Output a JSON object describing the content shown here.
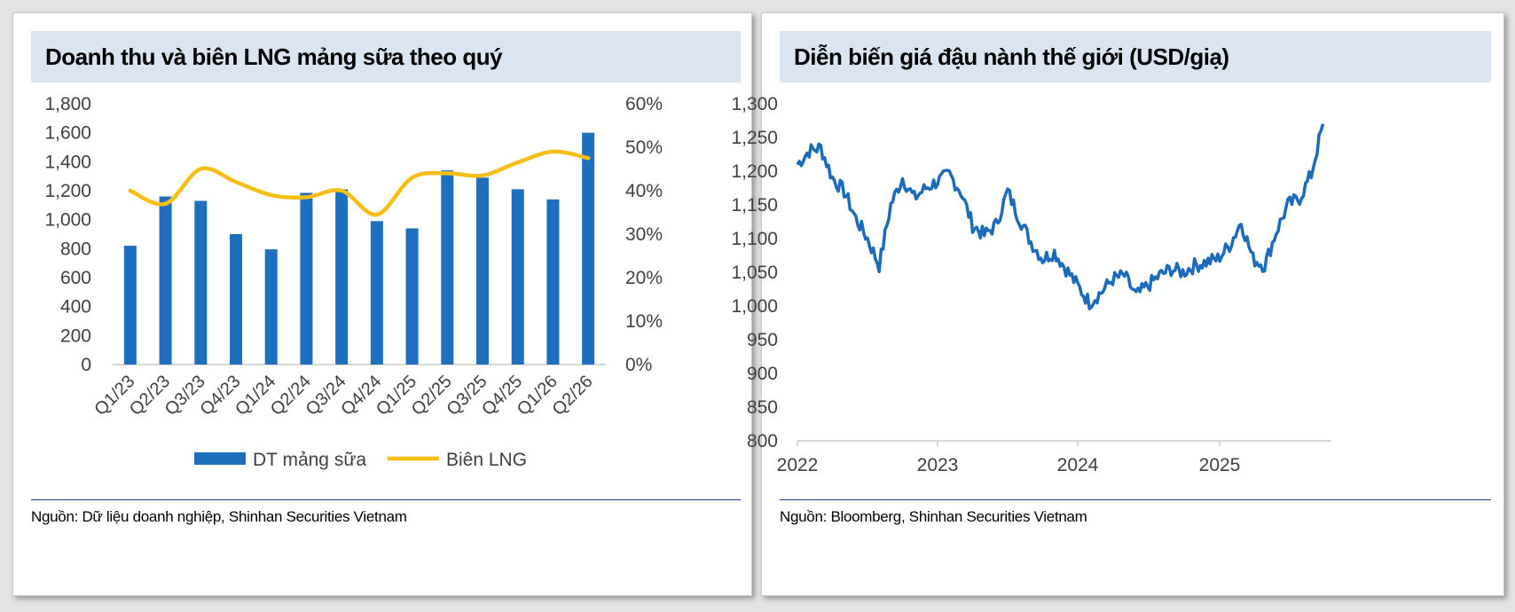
{
  "left_panel": {
    "title": "Doanh thu và biên LNG mảng sữa theo quý",
    "source": "Nguồn: Dữ liệu doanh nghiệp, Shinhan Securities Vietnam"
  },
  "right_panel": {
    "title": "Diễn biến giá đậu nành thế giới (USD/giạ)",
    "source": "Nguồn: Bloomberg, Shinhan Securities Vietnam"
  },
  "colors": {
    "bar": "#1f6fbf",
    "margin_line": "#f7be16",
    "price_line": "#1c6bba",
    "title_bg": "#dbe5f1",
    "rule": "#1f3a93"
  },
  "chart_data": [
    {
      "type": "bar",
      "categories": [
        "Q1/23",
        "Q2/23",
        "Q3/23",
        "Q4/23",
        "Q1/24",
        "Q2/24",
        "Q3/24",
        "Q4/24",
        "Q1/25",
        "Q2/25",
        "Q3/25",
        "Q4/25",
        "Q1/26",
        "Q2/26"
      ],
      "series": [
        {
          "name": "DT mảng sữa",
          "type": "bar",
          "axis": "left",
          "values": [
            820,
            1160,
            1130,
            900,
            795,
            1185,
            1210,
            990,
            940,
            1340,
            1290,
            1210,
            1140,
            1600
          ]
        },
        {
          "name": "Biên LNG",
          "type": "line",
          "axis": "right",
          "values": [
            0.4,
            0.37,
            0.45,
            0.42,
            0.39,
            0.385,
            0.4,
            0.345,
            0.43,
            0.44,
            0.435,
            0.465,
            0.49,
            0.475
          ]
        }
      ],
      "title": "Doanh thu và biên LNG mảng sữa theo quý",
      "y_left": {
        "min": 0,
        "max": 1800,
        "ticks": [
          "0",
          "200",
          "400",
          "600",
          "800",
          "1,000",
          "1,200",
          "1,400",
          "1,600",
          "1,800"
        ]
      },
      "y_right": {
        "min": 0,
        "max": 0.6,
        "ticks": [
          "0%",
          "10%",
          "20%",
          "30%",
          "40%",
          "50%",
          "60%"
        ]
      },
      "grid": false,
      "legend": "bottom"
    },
    {
      "type": "line",
      "title": "Diễn biến giá đậu nành thế giới (USD/giạ)",
      "x_labels": [
        "2022",
        "2023",
        "2024",
        "2025"
      ],
      "ylim": [
        800,
        1300
      ],
      "y_ticks": [
        "800",
        "850",
        "900",
        "950",
        "1,000",
        "1,050",
        "1,100",
        "1,150",
        "1,200",
        "1,250",
        "1,300"
      ],
      "grid": false,
      "series": [
        {
          "values_note_x": "date",
          "x": [
            "2022-01",
            "2022-02",
            "2022-03",
            "2022-04",
            "2022-05",
            "2022-06",
            "2022-07",
            "2022-08",
            "2022-09",
            "2022-10",
            "2022-11",
            "2022-12",
            "2023-01",
            "2023-02",
            "2023-03",
            "2023-04",
            "2023-05",
            "2023-06",
            "2023-07",
            "2023-08",
            "2023-09",
            "2023-10",
            "2023-11",
            "2023-12",
            "2024-01",
            "2024-02",
            "2024-03",
            "2024-04",
            "2024-05",
            "2024-06",
            "2024-07",
            "2024-08",
            "2024-09",
            "2024-10",
            "2024-11",
            "2024-12",
            "2025-01",
            "2025-02",
            "2025-03",
            "2025-04",
            "2025-05",
            "2025-06",
            "2025-07",
            "2025-08",
            "2025-09",
            "2025-10"
          ],
          "values": [
            1210,
            1230,
            1235,
            1190,
            1170,
            1130,
            1100,
            1060,
            1150,
            1190,
            1160,
            1175,
            1185,
            1195,
            1170,
            1120,
            1105,
            1120,
            1170,
            1130,
            1095,
            1070,
            1080,
            1055,
            1030,
            1005,
            1020,
            1040,
            1045,
            1015,
            1030,
            1045,
            1055,
            1050,
            1060,
            1065,
            1070,
            1090,
            1125,
            1070,
            1060,
            1110,
            1150,
            1160,
            1195,
            1270
          ]
        }
      ]
    }
  ]
}
